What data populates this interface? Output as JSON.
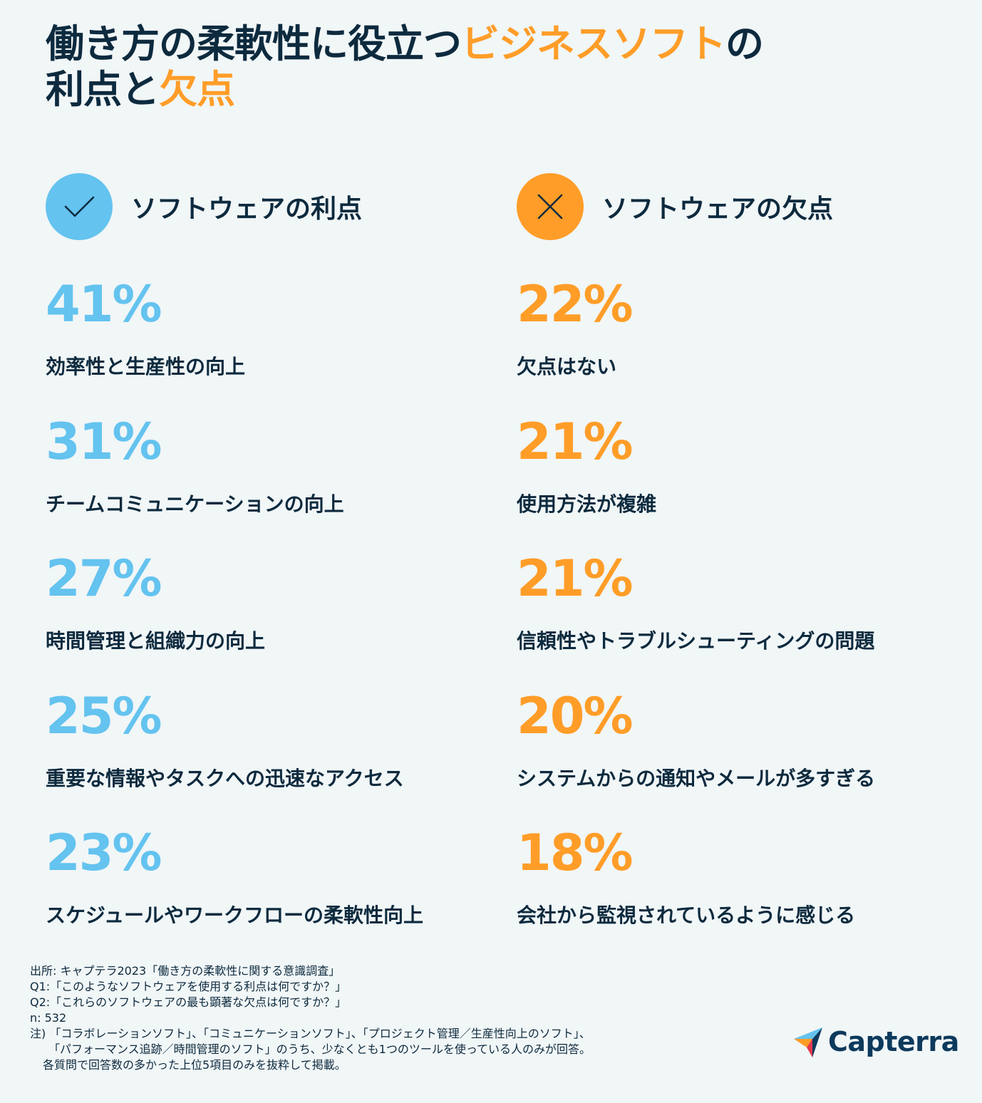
{
  "title": {
    "line1_a": "働き方の柔軟性に役立つ",
    "line1_b": "ビジネスソフト",
    "line1_c": "の",
    "line2_a": "利点と",
    "line2_b": "欠点"
  },
  "benefits": {
    "heading": "ソフトウェアの利点",
    "icon": "check-icon",
    "color": "#64c3ef",
    "items": [
      {
        "pct": "41%",
        "label": "効率性と生産性の向上"
      },
      {
        "pct": "31%",
        "label": "チームコミュニケーションの向上"
      },
      {
        "pct": "27%",
        "label": "時間管理と組織力の向上"
      },
      {
        "pct": "25%",
        "label": "重要な情報やタスクへの迅速なアクセス"
      },
      {
        "pct": "23%",
        "label": "スケジュールやワークフローの柔軟性向上"
      }
    ]
  },
  "drawbacks": {
    "heading": "ソフトウェアの欠点",
    "icon": "cross-icon",
    "color": "#ff9d28",
    "items": [
      {
        "pct": "22%",
        "label": "欠点はない"
      },
      {
        "pct": "21%",
        "label": "使用方法が複雑"
      },
      {
        "pct": "21%",
        "label": "信頼性やトラブルシューティングの問題"
      },
      {
        "pct": "20%",
        "label": "システムからの通知やメールが多すぎる"
      },
      {
        "pct": "18%",
        "label": "会社から監視されているように感じる"
      }
    ]
  },
  "footnote": {
    "source": "出所: キャプテラ2023「働き方の柔軟性に関する意識調査」",
    "q1": "Q1:「このようなソフトウェアを使用する利点は何ですか？」",
    "q2": "Q2:「これらのソフトウェアの最も顕著な欠点は何ですか？」",
    "n": "n: 532",
    "note1": "注) 「コラボレーションソフト」、「コミュニケーションソフト」、「プロジェクト管理／生産性向上のソフト」、",
    "note2": "「パフォーマンス追跡／時間管理のソフト」のうち、少なくとも1つのツールを使っている人のみが回答。",
    "note3": "各質問で回答数の多かった上位5項目のみを抜粋して掲載。"
  },
  "brand": {
    "name": "Capterra"
  }
}
